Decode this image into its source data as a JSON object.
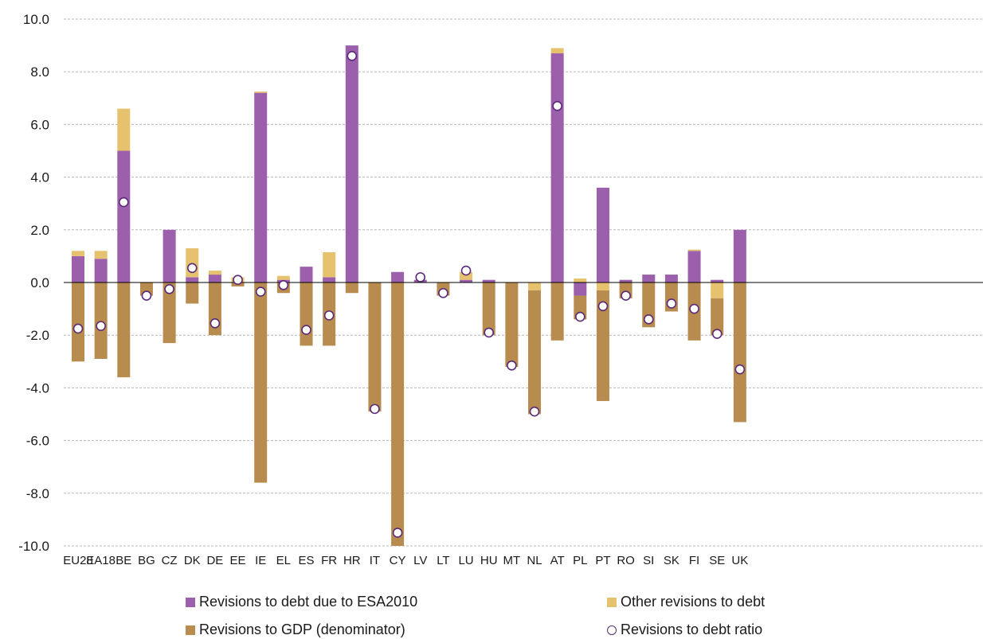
{
  "chart_data": {
    "type": "bar",
    "stacked": true,
    "title": "",
    "xlabel": "",
    "ylabel": "",
    "ylim": [
      -10,
      10
    ],
    "yticks": [
      "10.0",
      "8.0",
      "6.0",
      "4.0",
      "2.0",
      "0.0",
      "-2.0",
      "-4.0",
      "-6.0",
      "-8.0",
      "-10.0"
    ],
    "ytick_values": [
      10,
      8,
      6,
      4,
      2,
      0,
      -2,
      -4,
      -6,
      -8,
      -10
    ],
    "grid": true,
    "legend_position": "bottom",
    "categories": [
      "EU28",
      "EA18",
      "BE",
      "BG",
      "CZ",
      "DK",
      "DE",
      "EE",
      "IE",
      "EL",
      "ES",
      "FR",
      "HR",
      "IT",
      "CY",
      "LV",
      "LT",
      "LU",
      "HU",
      "MT",
      "NL",
      "AT",
      "PL",
      "PT",
      "RO",
      "SI",
      "SK",
      "FI",
      "SE",
      "UK"
    ],
    "series": [
      {
        "name": "Revisions to debt due to ESA2010",
        "color": "#9b5fab",
        "values": [
          1.0,
          0.9,
          5.0,
          0.0,
          2.0,
          0.2,
          0.3,
          0.0,
          7.2,
          0.1,
          0.6,
          0.2,
          9.0,
          0.0,
          0.4,
          0.1,
          0.0,
          0.1,
          0.1,
          0.0,
          0.0,
          8.7,
          -0.5,
          3.6,
          0.1,
          0.3,
          0.3,
          1.2,
          0.1,
          2.0
        ]
      },
      {
        "name": "Other revisions to debt",
        "color": "#e6c26e",
        "values": [
          0.2,
          0.3,
          1.6,
          0.0,
          0.0,
          1.1,
          0.15,
          0.2,
          0.05,
          0.15,
          0.0,
          0.95,
          0.0,
          0.0,
          0.0,
          0.0,
          0.0,
          0.3,
          0.0,
          0.0,
          -0.3,
          0.2,
          0.15,
          -0.3,
          0.0,
          0.0,
          0.0,
          0.05,
          -0.6,
          0.0
        ]
      },
      {
        "name": "Revisions to GDP (denominator)",
        "color": "#b88b4e",
        "values": [
          -3.0,
          -2.9,
          -3.6,
          -0.5,
          -2.3,
          -0.8,
          -2.0,
          -0.15,
          -7.6,
          -0.4,
          -2.4,
          -2.4,
          -0.4,
          -4.9,
          -10.0,
          0.0,
          -0.5,
          0.0,
          -2.0,
          -3.2,
          -4.7,
          -2.2,
          -0.9,
          -4.2,
          -0.6,
          -1.7,
          -1.1,
          -2.2,
          -1.4,
          -5.3
        ]
      }
    ],
    "markers": {
      "name": "Revisions to debt ratio",
      "values": [
        -1.75,
        -1.65,
        3.05,
        -0.5,
        -0.25,
        0.55,
        -1.55,
        0.1,
        -0.35,
        -0.1,
        -1.8,
        -1.25,
        8.6,
        -4.8,
        -9.5,
        0.2,
        -0.4,
        0.45,
        -1.9,
        -3.15,
        -4.9,
        6.7,
        -1.3,
        -0.9,
        -0.5,
        -1.4,
        -0.8,
        -1.0,
        -1.95,
        -3.3
      ]
    }
  }
}
